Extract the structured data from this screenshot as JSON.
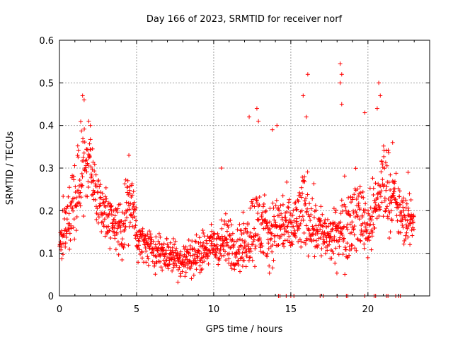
{
  "chart_data": {
    "type": "scatter",
    "title": "Day 166 of 2023, SRMTID for receiver norf",
    "xlabel": "GPS time / hours",
    "ylabel": "SRMTID / TECUs",
    "xlim": [
      0,
      24
    ],
    "ylim": [
      0,
      0.6
    ],
    "xticks": [
      0,
      5,
      10,
      15,
      20
    ],
    "xtick_labels": [
      "0",
      "5",
      "10",
      "15",
      "20"
    ],
    "yticks": [
      0,
      0.1,
      0.2,
      0.3,
      0.4,
      0.5,
      0.6
    ],
    "ytick_labels": [
      "0",
      "0.1",
      "0.2",
      "0.3",
      "0.4",
      "0.5",
      "0.6"
    ],
    "grid": true,
    "marker": "+",
    "color": "#ff0000",
    "series_trend": {
      "x": [
        0.0,
        0.5,
        1.0,
        1.5,
        1.9,
        2.2,
        2.6,
        3.0,
        3.5,
        4.0,
        4.4,
        4.8,
        5.1,
        5.6,
        6.0,
        6.5,
        7.0,
        7.5,
        8.0,
        8.5,
        9.0,
        9.5,
        10.0,
        10.5,
        11.0,
        11.5,
        12.0,
        12.5,
        13.0,
        13.5,
        14.0,
        14.5,
        15.0,
        15.5,
        16.0,
        16.5,
        17.0,
        17.5,
        18.0,
        18.5,
        19.0,
        19.5,
        20.0,
        20.5,
        21.0,
        21.5,
        22.0,
        22.5,
        23.0
      ],
      "center": [
        0.13,
        0.17,
        0.22,
        0.3,
        0.33,
        0.28,
        0.22,
        0.19,
        0.17,
        0.16,
        0.21,
        0.2,
        0.13,
        0.12,
        0.11,
        0.1,
        0.1,
        0.09,
        0.08,
        0.09,
        0.1,
        0.11,
        0.12,
        0.12,
        0.13,
        0.11,
        0.12,
        0.16,
        0.17,
        0.14,
        0.16,
        0.17,
        0.15,
        0.18,
        0.2,
        0.17,
        0.15,
        0.13,
        0.14,
        0.17,
        0.18,
        0.2,
        0.16,
        0.2,
        0.28,
        0.24,
        0.2,
        0.17,
        0.18
      ],
      "spread": [
        0.06,
        0.07,
        0.09,
        0.1,
        0.08,
        0.08,
        0.06,
        0.06,
        0.05,
        0.07,
        0.07,
        0.06,
        0.04,
        0.04,
        0.04,
        0.04,
        0.04,
        0.04,
        0.04,
        0.04,
        0.04,
        0.04,
        0.05,
        0.05,
        0.06,
        0.05,
        0.06,
        0.08,
        0.09,
        0.06,
        0.07,
        0.08,
        0.06,
        0.08,
        0.09,
        0.07,
        0.06,
        0.05,
        0.06,
        0.09,
        0.08,
        0.09,
        0.06,
        0.08,
        0.09,
        0.08,
        0.06,
        0.05,
        0.05
      ]
    },
    "peaks": [
      {
        "x": 1.5,
        "y": 0.47
      },
      {
        "x": 1.6,
        "y": 0.46
      },
      {
        "x": 1.9,
        "y": 0.41
      },
      {
        "x": 2.0,
        "y": 0.4
      },
      {
        "x": 4.5,
        "y": 0.33
      },
      {
        "x": 10.5,
        "y": 0.3
      },
      {
        "x": 12.3,
        "y": 0.42
      },
      {
        "x": 12.8,
        "y": 0.44
      },
      {
        "x": 12.9,
        "y": 0.41
      },
      {
        "x": 13.8,
        "y": 0.39
      },
      {
        "x": 14.1,
        "y": 0.4
      },
      {
        "x": 15.8,
        "y": 0.47
      },
      {
        "x": 16.1,
        "y": 0.52
      },
      {
        "x": 16.0,
        "y": 0.42
      },
      {
        "x": 18.2,
        "y": 0.545
      },
      {
        "x": 18.3,
        "y": 0.52
      },
      {
        "x": 18.2,
        "y": 0.5
      },
      {
        "x": 18.3,
        "y": 0.45
      },
      {
        "x": 19.8,
        "y": 0.43
      },
      {
        "x": 20.7,
        "y": 0.5
      },
      {
        "x": 20.8,
        "y": 0.47
      },
      {
        "x": 20.6,
        "y": 0.44
      },
      {
        "x": 21.6,
        "y": 0.36
      },
      {
        "x": 22.6,
        "y": 0.29
      }
    ],
    "zero_markers_x": [
      14.2,
      14.3,
      14.7,
      15.0,
      15.2,
      16.9,
      17.1,
      18.0,
      18.6,
      18.7,
      19.8,
      20.4,
      20.5,
      21.2,
      21.3,
      21.8,
      22.0,
      22.1
    ]
  }
}
